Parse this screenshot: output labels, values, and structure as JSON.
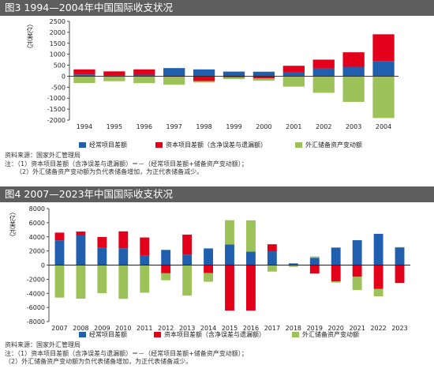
{
  "colors": {
    "current": "#1f5fae",
    "capital": "#e3001b",
    "reserve": "#9dc25a",
    "title_bg": "#5e5e5e",
    "axis": "#222222"
  },
  "chart_data": [
    {
      "type": "bar",
      "stacked": true,
      "title": "图3 1994—2004年中国国际收支状况",
      "ylabel": "（亿美元）",
      "ylim": [
        -2000,
        2500
      ],
      "yticks": [
        -2000,
        -1500,
        -1000,
        -500,
        0,
        500,
        1000,
        1500,
        2000,
        2500
      ],
      "categories": [
        "1994",
        "1995",
        "1996",
        "1997",
        "1998",
        "1999",
        "2000",
        "2001",
        "2002",
        "2003",
        "2004"
      ],
      "series": [
        {
          "name": "经常项目差额",
          "color_key": "current",
          "values": [
            80,
            20,
            70,
            370,
            310,
            210,
            205,
            175,
            355,
            430,
            690
          ]
        },
        {
          "name": "资本项目差额（含净误差与遗漏额）",
          "color_key": "capital",
          "values": [
            230,
            200,
            240,
            -30,
            -220,
            -50,
            -100,
            300,
            400,
            660,
            1220
          ]
        },
        {
          "name": "外汇储备资产变动额",
          "color_key": "reserve",
          "values": [
            -310,
            -225,
            -315,
            -357,
            -65,
            -85,
            -105,
            -475,
            -755,
            -1170,
            -1905
          ]
        }
      ],
      "legend": "bottom",
      "source": "资料来源：国家外汇管理局",
      "notes": [
        "注：（1）资本项目差额（含净误差与遗漏额）＝－（经常项目差额+储备资产变动额）；",
        "（2）外汇储备资产变动额为负代表储备增加，为正代表储备减少。"
      ]
    },
    {
      "type": "bar",
      "stacked": true,
      "title": "图4 2007—2023年中国国际收支状况",
      "ylabel": "（亿美元）",
      "ylim": [
        -8000,
        8000
      ],
      "yticks": [
        -8000,
        -6000,
        -4000,
        -2000,
        0,
        2000,
        4000,
        6000,
        8000
      ],
      "categories": [
        "2007",
        "2008",
        "2009",
        "2010",
        "2011",
        "2012",
        "2013",
        "2014",
        "2015",
        "2016",
        "2017",
        "2018",
        "2019",
        "2020",
        "2021",
        "2022",
        "2023"
      ],
      "series": [
        {
          "name": "经常项目差额",
          "color_key": "current",
          "values": [
            3500,
            4200,
            2430,
            2380,
            1360,
            2150,
            1480,
            2360,
            2930,
            1900,
            1950,
            240,
            1030,
            2480,
            3530,
            4430,
            2530
          ]
        },
        {
          "name": "资本项目差额（含净误差与遗漏额）",
          "color_key": "capital",
          "values": [
            1100,
            550,
            1550,
            2400,
            2550,
            -1160,
            2840,
            -1130,
            -6440,
            -6440,
            1000,
            -80,
            -1200,
            -2300,
            -1650,
            -3360,
            -2540
          ]
        },
        {
          "name": "外汇储备资产变动额",
          "color_key": "reserve",
          "values": [
            -4600,
            -4750,
            -3980,
            -4780,
            -3910,
            -990,
            -4320,
            -1230,
            3430,
            4440,
            -920,
            -180,
            190,
            -180,
            -1880,
            -1060,
            10
          ]
        }
      ],
      "legend": "bottom",
      "source": "资料来源：国家外汇管理局",
      "notes": [
        "注：（1）资本项目差额（含净误差与遗漏额）＝－（经常项目差额+储备资产变动额）；",
        "（2）外汇储备资产变动额为负代表储备增加，为正代表储备减少。"
      ]
    }
  ]
}
